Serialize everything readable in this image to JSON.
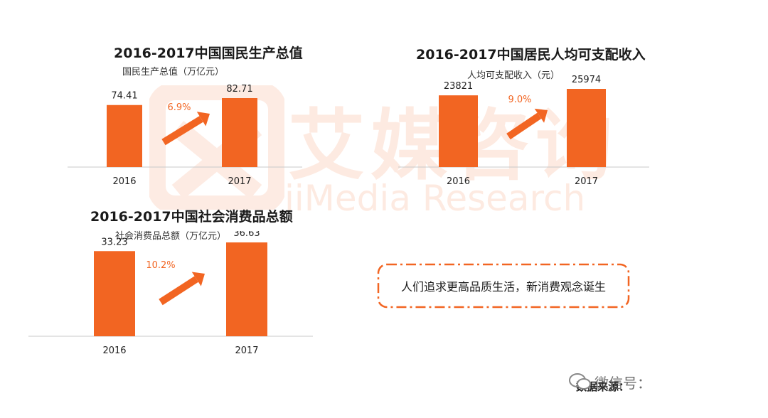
{
  "colors": {
    "bar": "#f26522",
    "growth_label": "#f26522",
    "axis": "#c8c8c8",
    "callout_border": "#f26522"
  },
  "watermark": {
    "chinese": "艾媒咨询",
    "english": "iiMedia Research"
  },
  "chart_data": [
    {
      "type": "bar",
      "title": "2016-2017中国国民生产总值",
      "ylabel": "国民生产总值（万亿元）",
      "categories": [
        "2016",
        "2017"
      ],
      "values": [
        74.41,
        82.71
      ],
      "value_labels": [
        "74.41",
        "82.71"
      ],
      "growth_label": "6.9%",
      "ylim": [
        0,
        82.71
      ]
    },
    {
      "type": "bar",
      "title": "2016-2017中国居民人均可支配收入",
      "ylabel": "人均可支配收入（元）",
      "categories": [
        "2016",
        "2017"
      ],
      "values": [
        23821,
        25974
      ],
      "value_labels": [
        "23821",
        "25974"
      ],
      "growth_label": "9.0%",
      "ylim": [
        0,
        25974
      ]
    },
    {
      "type": "bar",
      "title": "2016-2017中国社会消费品总额",
      "ylabel": "社会消费品总额（万亿元）",
      "categories": [
        "2016",
        "2017"
      ],
      "values": [
        33.23,
        36.63
      ],
      "value_labels": [
        "33.23",
        "36.63"
      ],
      "growth_label": "10.2%",
      "ylim": [
        0,
        36.63
      ]
    }
  ],
  "callout": {
    "text": "人们追求更高品质生活，新消费观念诞生"
  },
  "footer": {
    "source": "数据来源：",
    "wechat": "微信号："
  }
}
